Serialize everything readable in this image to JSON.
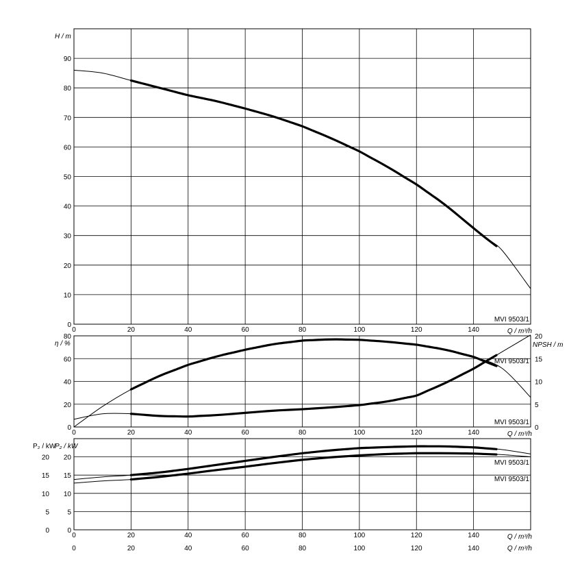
{
  "chart_data": [
    {
      "panel": "head",
      "type": "line",
      "ylabel": "H / m",
      "xlabel": "Q / m³/h",
      "xlim": [
        0,
        160
      ],
      "ylim": [
        0,
        100
      ],
      "x_ticks": [
        "0",
        "20",
        "40",
        "60",
        "80",
        "100",
        "120",
        "140"
      ],
      "y_ticks": [
        "0",
        "10",
        "20",
        "30",
        "40",
        "50",
        "60",
        "70",
        "80",
        "90"
      ],
      "grid": true,
      "series": [
        {
          "name": "MVI 9503/1",
          "x": [
            0,
            10,
            20,
            30,
            40,
            50,
            60,
            70,
            80,
            90,
            100,
            110,
            120,
            130,
            140,
            145,
            150,
            160
          ],
          "y": [
            86,
            85,
            82.5,
            80,
            77.5,
            75.5,
            73,
            70.3,
            67,
            63,
            58.5,
            53.2,
            47.3,
            40.5,
            32.5,
            28.6,
            25,
            12
          ],
          "duty_range": [
            20,
            148
          ]
        }
      ],
      "labels": [
        "MVI 9503/1"
      ]
    },
    {
      "panel": "efficiency_npsh",
      "type": "line",
      "ylabel": "η / %",
      "y2label": "NPSH / m",
      "xlabel": "Q / m³/h",
      "xlim": [
        0,
        160
      ],
      "ylim": [
        0,
        80
      ],
      "y2lim": [
        0,
        20
      ],
      "x_ticks": [
        "0",
        "20",
        "40",
        "60",
        "80",
        "100",
        "120",
        "140"
      ],
      "y_ticks": [
        "0",
        "20",
        "40",
        "60",
        "80"
      ],
      "y2_ticks": [
        "0",
        "5",
        "10",
        "15",
        "20"
      ],
      "grid": true,
      "series": [
        {
          "name": "MVI 9503/1",
          "quantity": "η",
          "x": [
            0,
            10,
            20,
            30,
            40,
            50,
            60,
            70,
            80,
            90,
            100,
            110,
            120,
            130,
            140,
            150,
            160
          ],
          "y": [
            0,
            18,
            33,
            45,
            54.5,
            62,
            67.8,
            72.8,
            75.8,
            77,
            76.5,
            74.8,
            72.2,
            68,
            61.5,
            51.5,
            26
          ],
          "duty_range": [
            20,
            148
          ]
        },
        {
          "name": "MVI 9503/1",
          "quantity": "NPSH",
          "x": [
            0,
            10,
            20,
            30,
            40,
            50,
            60,
            70,
            80,
            90,
            100,
            110,
            120,
            130,
            140,
            150,
            160
          ],
          "y": [
            1.7,
            2.9,
            2.9,
            2.4,
            2.3,
            2.6,
            3.1,
            3.6,
            3.9,
            4.3,
            4.8,
            5.6,
            6.9,
            9.6,
            12.8,
            16.5,
            20.2
          ],
          "duty_range": [
            20,
            148
          ]
        }
      ],
      "labels": [
        "MVI 9503/1",
        "MVI 9503/1"
      ]
    },
    {
      "panel": "power",
      "type": "line",
      "ylabel": "P₂ / kW",
      "ylabel_outer": "P₂ / kW",
      "xlabel": "Q / m³/h",
      "xlim": [
        0,
        160
      ],
      "ylim": [
        0,
        25
      ],
      "x_ticks": [
        "0",
        "20",
        "40",
        "60",
        "80",
        "100",
        "120",
        "140"
      ],
      "y_ticks": [
        "0",
        "5",
        "10",
        "15",
        "20"
      ],
      "y_ticks_outer": [
        "0",
        "5",
        "10",
        "15",
        "20"
      ],
      "grid": true,
      "series": [
        {
          "name": "MVI 9503/1",
          "x": [
            0,
            10,
            20,
            30,
            40,
            50,
            60,
            70,
            80,
            90,
            100,
            110,
            120,
            130,
            140,
            150,
            160
          ],
          "y": [
            13.8,
            14.5,
            15,
            15.7,
            16.7,
            17.8,
            18.9,
            20,
            21,
            21.8,
            22.4,
            22.7,
            22.9,
            22.9,
            22.6,
            22,
            20.8
          ],
          "duty_range": [
            20,
            148
          ]
        },
        {
          "name": "MVI 9503/1",
          "x": [
            0,
            10,
            20,
            30,
            40,
            50,
            60,
            70,
            80,
            90,
            100,
            110,
            120,
            130,
            140,
            150,
            160
          ],
          "y": [
            12.8,
            13.4,
            13.8,
            14.5,
            15.4,
            16.4,
            17.3,
            18.3,
            19.2,
            19.9,
            20.4,
            20.8,
            21,
            21,
            20.9,
            20.6,
            20
          ],
          "duty_range": [
            20,
            148
          ]
        }
      ],
      "labels": [
        "MVI 9503/1",
        "MVI 9503/1"
      ],
      "bottom_axis": {
        "xlabel": "Q / m³/h",
        "x_ticks": [
          "0",
          "20",
          "40",
          "60",
          "80",
          "100",
          "120",
          "140"
        ]
      }
    }
  ]
}
